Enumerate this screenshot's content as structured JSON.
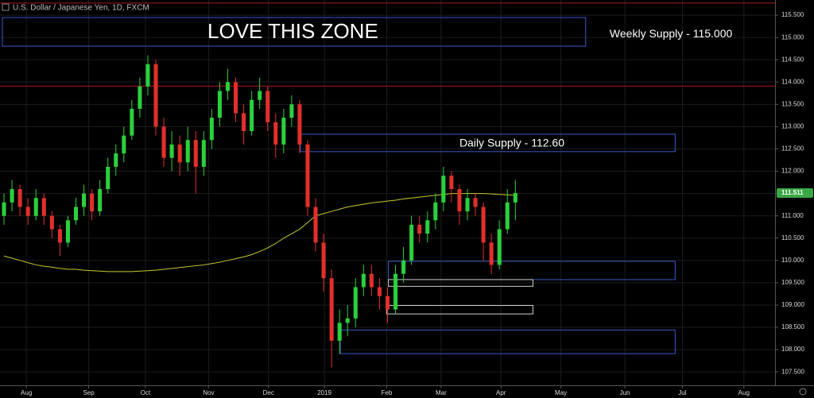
{
  "chart_data": {
    "type": "candlestick",
    "title": "U.S. Dollar / Japanese Yen, 1D, FXCM",
    "up_color": "#2bd13c",
    "down_color": "#e2302a",
    "open": [
      111.0,
      111.3,
      111.6,
      111.2,
      111.0,
      111.4,
      111.0,
      110.7,
      110.4,
      110.9,
      111.2,
      111.5,
      111.1,
      111.6,
      112.1,
      112.4,
      112.8,
      113.4,
      113.9,
      114.4,
      113.0,
      112.3,
      112.6,
      112.2,
      112.7,
      112.1,
      112.7,
      113.2,
      113.8,
      114.0,
      113.3,
      112.9,
      113.6,
      113.8,
      113.1,
      112.6,
      113.2,
      113.5,
      112.6,
      111.2,
      110.4,
      109.6,
      108.2,
      108.6,
      108.7,
      109.4,
      109.7,
      109.4,
      109.2,
      108.9,
      109.7,
      110.0,
      110.8,
      110.6,
      110.9,
      111.3,
      111.9,
      111.6,
      111.1,
      111.4,
      111.2,
      110.4,
      109.9,
      110.7,
      111.3
    ],
    "high": [
      111.5,
      111.8,
      111.7,
      111.4,
      111.6,
      111.5,
      111.1,
      110.8,
      111.0,
      111.4,
      111.7,
      111.6,
      111.8,
      112.3,
      112.6,
      113.0,
      113.6,
      114.1,
      114.6,
      114.5,
      113.2,
      112.9,
      112.8,
      113.0,
      112.9,
      112.9,
      113.4,
      114.0,
      114.3,
      114.1,
      113.5,
      113.8,
      114.1,
      113.9,
      113.3,
      113.4,
      113.7,
      113.6,
      112.7,
      111.4,
      110.6,
      109.8,
      108.9,
      109.0,
      109.6,
      109.9,
      109.9,
      109.6,
      109.4,
      109.9,
      110.3,
      111.0,
      111.0,
      111.1,
      111.5,
      112.1,
      112.0,
      111.7,
      111.6,
      111.5,
      111.3,
      110.6,
      110.9,
      111.6,
      111.8
    ],
    "low": [
      110.8,
      111.1,
      111.0,
      110.8,
      110.9,
      110.8,
      110.5,
      110.1,
      110.3,
      110.8,
      111.0,
      110.9,
      111.0,
      111.5,
      111.9,
      112.2,
      112.7,
      113.2,
      113.7,
      112.8,
      112.1,
      112.0,
      111.9,
      112.0,
      111.5,
      111.9,
      112.5,
      113.0,
      113.6,
      113.1,
      112.6,
      112.8,
      113.4,
      112.9,
      112.3,
      112.4,
      113.0,
      112.4,
      111.0,
      110.2,
      109.3,
      107.6,
      107.9,
      108.3,
      108.5,
      109.2,
      109.2,
      108.9,
      108.6,
      108.8,
      109.5,
      109.9,
      110.4,
      110.4,
      110.7,
      111.1,
      111.3,
      110.8,
      110.9,
      111.0,
      110.0,
      109.7,
      109.8,
      110.6,
      110.9
    ],
    "close": [
      111.3,
      111.6,
      111.2,
      111.0,
      111.4,
      111.0,
      110.7,
      110.4,
      110.9,
      111.2,
      111.5,
      111.1,
      111.6,
      112.1,
      112.4,
      112.8,
      113.4,
      113.9,
      114.4,
      113.0,
      112.3,
      112.6,
      112.2,
      112.7,
      112.1,
      112.7,
      113.2,
      113.8,
      114.0,
      113.3,
      112.9,
      113.6,
      113.8,
      113.1,
      112.6,
      113.2,
      113.5,
      112.6,
      111.2,
      110.4,
      109.6,
      108.2,
      108.6,
      108.7,
      109.4,
      109.7,
      109.4,
      109.2,
      108.9,
      109.7,
      110.0,
      110.8,
      110.6,
      110.9,
      111.3,
      111.9,
      111.6,
      111.1,
      111.4,
      111.2,
      110.4,
      109.9,
      110.7,
      111.3,
      111.511
    ],
    "series": [
      {
        "color": "#c8c832",
        "values": [
          110.1,
          110.05,
          110.0,
          109.95,
          109.9,
          109.87,
          109.85,
          109.82,
          109.8,
          109.8,
          109.78,
          109.77,
          109.76,
          109.75,
          109.75,
          109.75,
          109.75,
          109.76,
          109.77,
          109.78,
          109.8,
          109.82,
          109.84,
          109.86,
          109.88,
          109.9,
          109.93,
          109.96,
          110.0,
          110.04,
          110.08,
          110.13,
          110.2,
          110.28,
          110.38,
          110.5,
          110.6,
          110.7,
          110.85,
          111.0,
          111.05,
          111.1,
          111.15,
          111.2,
          111.23,
          111.26,
          111.29,
          111.31,
          111.33,
          111.35,
          111.38,
          111.4,
          111.42,
          111.44,
          111.46,
          111.48,
          111.5,
          111.5,
          111.5,
          111.5,
          111.5,
          111.49,
          111.48,
          111.47,
          111.46
        ]
      }
    ],
    "hlines": [
      {
        "value": 115.77,
        "color": "#b01818"
      },
      {
        "value": 113.91,
        "color": "#b01818"
      }
    ],
    "zones": [
      {
        "label": "LOVE THIS ZONE",
        "top": 115.447,
        "bottom": 114.805,
        "start": 0.3,
        "end": 73.3,
        "color": "#3a5bc8"
      },
      {
        "label": "Daily Supply - 112.60",
        "top": 112.83,
        "bottom": 112.44,
        "start": 37.6,
        "end": 84.5,
        "color": "#3a5bc8"
      },
      {
        "top": 109.98,
        "bottom": 109.57,
        "start": 48.6,
        "end": 84.5,
        "color": "#3a5bc8"
      },
      {
        "top": 109.57,
        "bottom": 109.42,
        "start": 48.6,
        "end": 66.7,
        "color": "#cfcfcf"
      },
      {
        "top": 108.99,
        "bottom": 108.8,
        "start": 48.4,
        "end": 66.7,
        "color": "#cfcfcf"
      },
      {
        "top": 108.44,
        "bottom": 107.91,
        "start": 42.6,
        "end": 84.5,
        "color": "#3a5bc8"
      }
    ],
    "annotations": [
      {
        "text": "Weekly Supply - 115.000",
        "x": 76.3,
        "y": 115.07
      }
    ],
    "xlim": [
      0,
      97
    ],
    "xticks": [
      {
        "value": 3.3,
        "label": "Aug"
      },
      {
        "value": 11.1,
        "label": "Sep"
      },
      {
        "value": 18.2,
        "label": "Oct"
      },
      {
        "value": 26.1,
        "label": "Nov"
      },
      {
        "value": 33.6,
        "label": "Dec"
      },
      {
        "value": 40.6,
        "label": "2019"
      },
      {
        "value": 48.4,
        "label": "Feb"
      },
      {
        "value": 55.2,
        "label": "Mar"
      },
      {
        "value": 62.7,
        "label": "Apr"
      },
      {
        "value": 70.2,
        "label": "May"
      },
      {
        "value": 78.2,
        "label": "Jun"
      },
      {
        "value": 85.4,
        "label": "Jul"
      },
      {
        "value": 93.1,
        "label": "Aug"
      }
    ],
    "ylim": [
      107.2,
      115.84
    ],
    "yticks": [
      {
        "value": 107.5,
        "label": "107.500"
      },
      {
        "value": 108,
        "label": "108.000"
      },
      {
        "value": 108.5,
        "label": "108.500"
      },
      {
        "value": 109,
        "label": "109.000"
      },
      {
        "value": 109.5,
        "label": "109.500"
      },
      {
        "value": 110,
        "label": "110.000"
      },
      {
        "value": 110.5,
        "label": "110.500"
      },
      {
        "value": 111,
        "label": "111.000"
      },
      {
        "value": 111.5,
        "label": "111.500"
      },
      {
        "value": 112,
        "label": "112.000"
      },
      {
        "value": 112.5,
        "label": "112.500"
      },
      {
        "value": 113,
        "label": "113.000"
      },
      {
        "value": 113.5,
        "label": "113.500"
      },
      {
        "value": 114,
        "label": "114.000"
      },
      {
        "value": 114.5,
        "label": "114.500"
      },
      {
        "value": 115,
        "label": "115.000"
      },
      {
        "value": 115.5,
        "label": "115.500"
      }
    ],
    "grid": true
  }
}
